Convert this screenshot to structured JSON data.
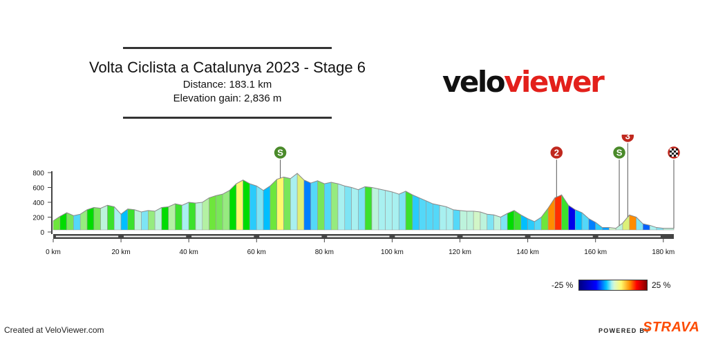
{
  "header": {
    "title": "Volta Ciclista a Catalunya 2023 - Stage 6",
    "distance": "Distance: 183.1 km",
    "elevation": "Elevation gain: 2,836 m"
  },
  "logo": {
    "part1": "velo",
    "part2": "viewer"
  },
  "footer": {
    "created": "Created at VeloViewer.com",
    "powered": "POWERED BY",
    "brand": "STRAVA"
  },
  "gradient_scale": {
    "min_label": "-25 %",
    "max_label": "25 %"
  },
  "colors": {
    "strava": "#fc4c02",
    "logo_red": "#e3201b",
    "sprint_marker": "#4a8a2a",
    "climb_marker": "#c0281e",
    "axis": "#444444"
  },
  "chart_data": {
    "type": "area",
    "title": "",
    "xlabel": "",
    "ylabel": "",
    "xlim": [
      0,
      183.1
    ],
    "ylim": [
      0,
      800
    ],
    "x_ticks": [
      {
        "value": 0,
        "label": "0 km"
      },
      {
        "value": 20,
        "label": "20 km"
      },
      {
        "value": 40,
        "label": "40 km"
      },
      {
        "value": 60,
        "label": "60 km"
      },
      {
        "value": 80,
        "label": "80 km"
      },
      {
        "value": 100,
        "label": "100 km"
      },
      {
        "value": 120,
        "label": "120 km"
      },
      {
        "value": 140,
        "label": "140 km"
      },
      {
        "value": 160,
        "label": "160 km"
      },
      {
        "value": 180,
        "label": "180 km"
      }
    ],
    "y_ticks": [
      {
        "value": 0,
        "label": "0"
      },
      {
        "value": 200,
        "label": "200"
      },
      {
        "value": 400,
        "label": "400"
      },
      {
        "value": 600,
        "label": "600"
      },
      {
        "value": 800,
        "label": "800"
      }
    ],
    "distance_km": [
      0,
      2,
      4,
      6,
      8,
      10,
      12,
      14,
      16,
      18,
      20,
      22,
      24,
      26,
      28,
      30,
      32,
      34,
      36,
      38,
      40,
      42,
      44,
      46,
      48,
      50,
      52,
      54,
      56,
      58,
      60,
      62,
      64,
      66,
      68,
      70,
      72,
      74,
      76,
      78,
      80,
      82,
      84,
      86,
      88,
      90,
      92,
      94,
      96,
      98,
      100,
      102,
      104,
      106,
      108,
      110,
      112,
      114,
      116,
      118,
      120,
      122,
      124,
      126,
      128,
      130,
      132,
      134,
      136,
      138,
      140,
      142,
      144,
      146,
      148,
      150,
      152,
      154,
      156,
      158,
      160,
      162,
      164,
      166,
      168,
      170,
      172,
      174,
      176,
      178,
      180,
      183.1
    ],
    "elevation_m": [
      150,
      210,
      260,
      220,
      240,
      300,
      330,
      320,
      360,
      340,
      240,
      310,
      300,
      270,
      290,
      280,
      330,
      340,
      380,
      360,
      400,
      390,
      400,
      460,
      490,
      510,
      560,
      650,
      700,
      650,
      620,
      560,
      620,
      710,
      740,
      720,
      790,
      700,
      660,
      690,
      650,
      670,
      650,
      620,
      600,
      570,
      610,
      600,
      580,
      560,
      540,
      510,
      550,
      500,
      460,
      420,
      380,
      360,
      340,
      300,
      290,
      280,
      280,
      270,
      240,
      230,
      200,
      250,
      290,
      230,
      180,
      140,
      200,
      320,
      460,
      500,
      360,
      300,
      260,
      180,
      130,
      60,
      60,
      50,
      120,
      230,
      200,
      110,
      90,
      60,
      50,
      50
    ],
    "gradient_pct": [
      6,
      5,
      3,
      -4,
      2,
      5,
      3,
      -1,
      4,
      -2,
      -6,
      4,
      -1,
      -3,
      2,
      -1,
      5,
      1,
      4,
      -2,
      4,
      -1,
      1,
      6,
      3,
      2,
      5,
      9,
      5,
      -5,
      -3,
      -6,
      6,
      9,
      3,
      -2,
      7,
      -8,
      -4,
      3,
      -4,
      2,
      -2,
      -3,
      -2,
      -3,
      4,
      -1,
      -2,
      -2,
      -2,
      -3,
      4,
      -5,
      -4,
      -4,
      -4,
      -2,
      -2,
      -4,
      -1,
      -1,
      0,
      -1,
      -3,
      -1,
      -3,
      5,
      4,
      -6,
      -5,
      -4,
      6,
      12,
      14,
      4,
      -14,
      -6,
      -4,
      -8,
      -5,
      -7,
      0,
      -1,
      7,
      12,
      -3,
      -9,
      -2,
      -3,
      -1,
      0
    ],
    "markers": [
      {
        "km": 67,
        "label": "S",
        "kind": "sprint",
        "level": 0
      },
      {
        "km": 148.5,
        "label": "2",
        "kind": "climb",
        "level": 0
      },
      {
        "km": 167,
        "label": "S",
        "kind": "sprint",
        "level": 0
      },
      {
        "km": 169.5,
        "label": "3",
        "kind": "climb",
        "level": 1
      },
      {
        "km": 183.1,
        "label": "finish",
        "kind": "finish",
        "level": 0
      }
    ]
  }
}
